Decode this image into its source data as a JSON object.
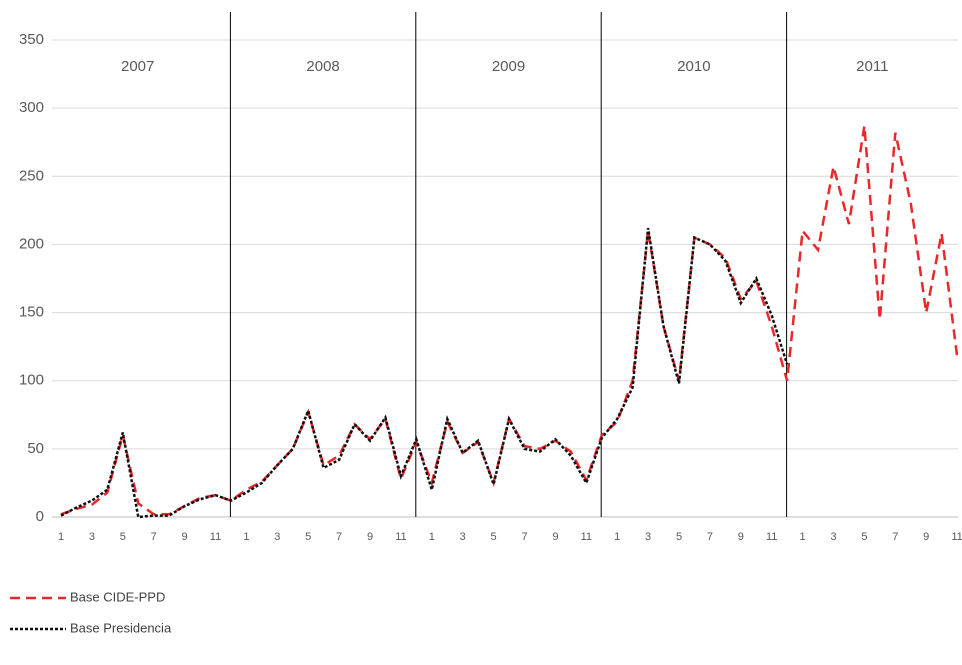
{
  "chart_data": {
    "type": "line",
    "categories": [
      "1",
      null,
      "3",
      null,
      "5",
      null,
      "7",
      null,
      "9",
      null,
      "11",
      null,
      "1",
      null,
      "3",
      null,
      "5",
      null,
      "7",
      null,
      "9",
      null,
      "11",
      null,
      "1",
      null,
      "3",
      null,
      "5",
      null,
      "7",
      null,
      "9",
      null,
      "11",
      null,
      "1",
      null,
      "3",
      null,
      "5",
      null,
      "7",
      null,
      "9",
      null,
      "11",
      null,
      "1",
      null,
      "3",
      null,
      "5",
      null,
      "7",
      null,
      "9",
      null,
      "11"
    ],
    "annotations": [
      "2007",
      "2008",
      "2009",
      "2010",
      "2011"
    ],
    "series": [
      {
        "name": "Base CIDE-PPD",
        "color": "#e8282b",
        "dash": "10 6",
        "values": [
          2,
          6,
          9,
          18,
          60,
          10,
          2,
          2,
          8,
          14,
          16,
          12,
          20,
          26,
          38,
          50,
          77,
          38,
          45,
          68,
          57,
          72,
          28,
          55,
          25,
          70,
          47,
          55,
          25,
          72,
          52,
          50,
          56,
          48,
          27,
          60,
          70,
          100,
          210,
          140,
          100,
          205,
          200,
          190,
          160,
          173,
          140,
          100,
          210,
          196,
          257,
          215,
          287,
          145,
          282,
          230,
          150,
          208,
          118
        ]
      },
      {
        "name": "Base Presidencia",
        "color": "#111111",
        "dash": "3 2",
        "values": [
          1,
          7,
          12,
          20,
          62,
          0,
          1,
          1,
          8,
          13,
          16,
          12,
          18,
          25,
          38,
          50,
          78,
          36,
          42,
          68,
          56,
          73,
          30,
          57,
          20,
          72,
          47,
          56,
          24,
          72,
          50,
          48,
          57,
          45,
          25,
          58,
          72,
          95,
          212,
          140,
          98,
          205,
          200,
          188,
          157,
          175,
          148,
          112,
          null,
          null,
          null,
          null,
          null,
          null,
          null,
          null,
          null,
          null,
          null
        ]
      }
    ],
    "ylim": [
      0,
      350
    ],
    "yticks": [
      0,
      50,
      100,
      150,
      200,
      250,
      300,
      350
    ],
    "grid": true
  }
}
